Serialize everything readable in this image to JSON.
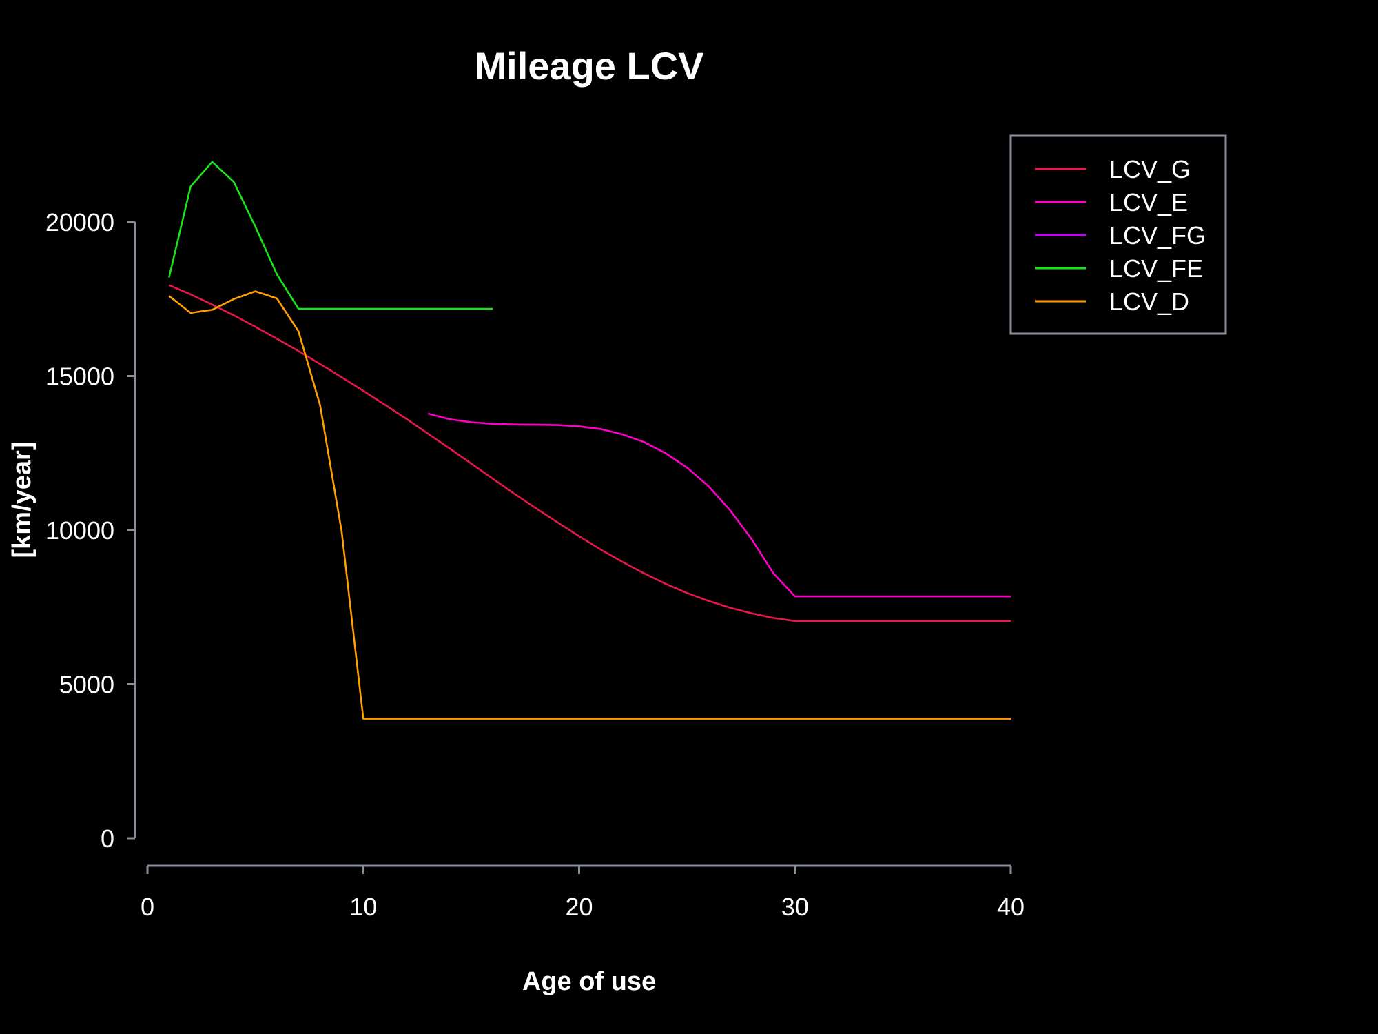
{
  "chart_data": {
    "type": "line",
    "title": "Mileage LCV",
    "xlabel": "Age of use",
    "ylabel": "[km/year]",
    "xlim": [
      0,
      40
    ],
    "ylim": [
      0,
      20000
    ],
    "xticks": [
      0,
      10,
      20,
      30,
      40
    ],
    "yticks": [
      0,
      5000,
      10000,
      15000,
      20000
    ],
    "grid": false,
    "legend_position": "top-right",
    "background": "#000000",
    "series": [
      {
        "name": "LCV_G",
        "color": "#e8174a",
        "x": [
          1,
          2,
          3,
          4,
          5,
          6,
          7,
          8,
          9,
          10,
          11,
          12,
          13,
          14,
          15,
          16,
          17,
          18,
          19,
          20,
          21,
          22,
          23,
          24,
          25,
          26,
          27,
          28,
          29,
          30,
          31,
          32,
          33,
          34,
          35,
          36,
          37,
          38,
          39,
          40
        ],
        "y": [
          17950,
          17650,
          17320,
          16970,
          16600,
          16210,
          15810,
          15390,
          14960,
          14520,
          14070,
          13610,
          13130,
          12650,
          12160,
          11670,
          11180,
          10710,
          10250,
          9800,
          9370,
          8970,
          8600,
          8260,
          7960,
          7700,
          7480,
          7300,
          7150,
          7050,
          7050,
          7050,
          7050,
          7050,
          7050,
          7050,
          7050,
          7050,
          7050,
          7050
        ]
      },
      {
        "name": "LCV_E",
        "color": "#ff00c8",
        "x": [
          13,
          14,
          15,
          16,
          17,
          18,
          19,
          20,
          21,
          22,
          23,
          24,
          25,
          26,
          27,
          28,
          29,
          30,
          31,
          32,
          33,
          34,
          35,
          36,
          37,
          38,
          39,
          40
        ],
        "y": [
          13780,
          13600,
          13500,
          13450,
          13430,
          13420,
          13410,
          13370,
          13280,
          13110,
          12860,
          12500,
          12030,
          11420,
          10640,
          9700,
          8600,
          7850,
          7850,
          7850,
          7850,
          7850,
          7850,
          7850,
          7850,
          7850,
          7850,
          7850
        ]
      },
      {
        "name": "LCV_FG",
        "color": "#c000f0",
        "x": [],
        "y": []
      },
      {
        "name": "LCV_FE",
        "color": "#19e619",
        "x": [
          1,
          2,
          3,
          4,
          5,
          6,
          7,
          8,
          9,
          10,
          11,
          12,
          13,
          14,
          15,
          16
        ],
        "y": [
          18200,
          21150,
          21950,
          21300,
          19850,
          18300,
          17180,
          17180,
          17180,
          17180,
          17180,
          17180,
          17180,
          17180,
          17180,
          17180
        ]
      },
      {
        "name": "LCV_D",
        "color": "#ffa000",
        "x": [
          1,
          2,
          3,
          4,
          5,
          6,
          7,
          8,
          9,
          10,
          11,
          12,
          13,
          14,
          15,
          16,
          17,
          18,
          19,
          20,
          21,
          22,
          23,
          24,
          25,
          26,
          27,
          28,
          29,
          30,
          31,
          32,
          33,
          34,
          35,
          36,
          37,
          38,
          39,
          40
        ],
        "y": [
          17600,
          17050,
          17150,
          17500,
          17750,
          17520,
          16450,
          14050,
          9950,
          3880,
          3880,
          3880,
          3880,
          3880,
          3880,
          3880,
          3880,
          3880,
          3880,
          3880,
          3880,
          3880,
          3880,
          3880,
          3880,
          3880,
          3880,
          3880,
          3880,
          3880,
          3880,
          3880,
          3880,
          3880,
          3880,
          3880,
          3880,
          3880,
          3880,
          3880
        ]
      }
    ]
  }
}
